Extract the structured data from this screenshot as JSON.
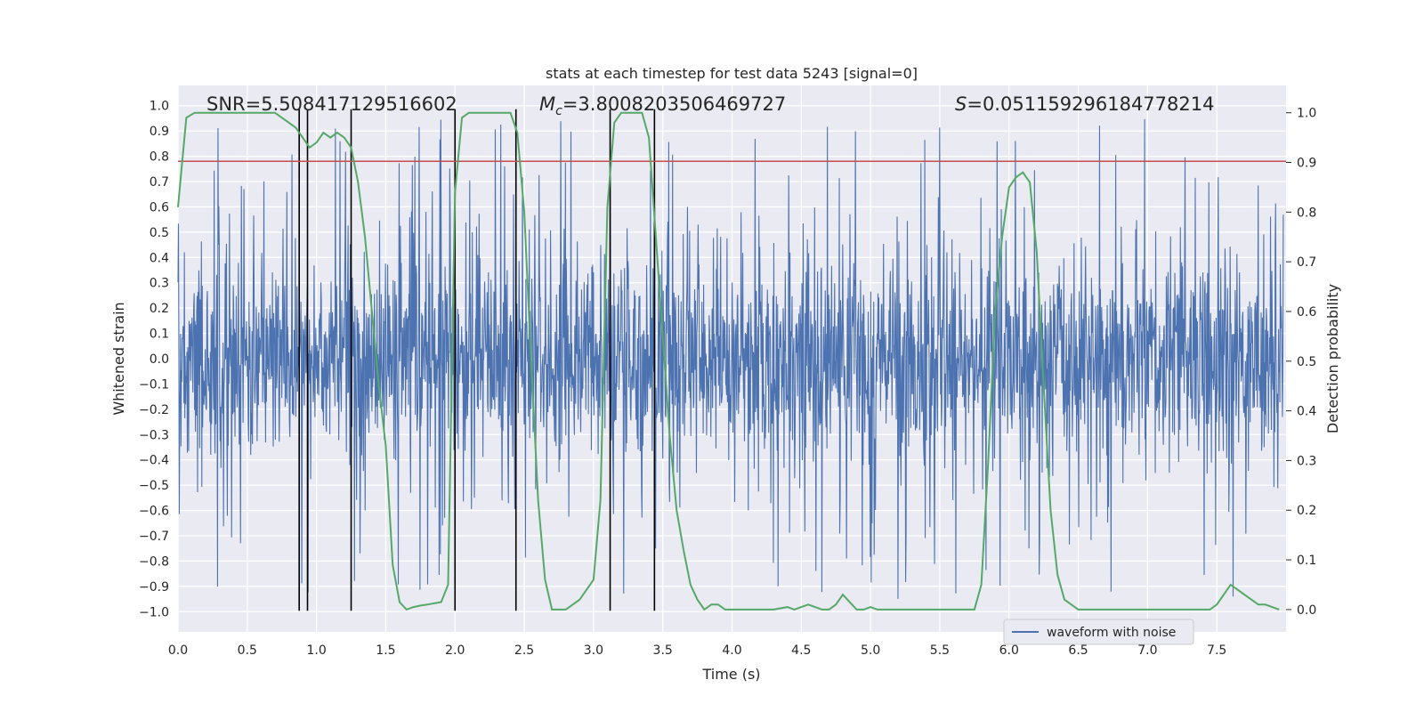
{
  "chart_data": {
    "type": "line",
    "title": "stats at each timestep for test data 5243 [signal=0]",
    "xlabel": "Time (s)",
    "ylabel_left": "Whitened strain",
    "ylabel_right": "Detection probability",
    "xlim": [
      0.0,
      8.0
    ],
    "ylim_left": [
      -1.08,
      1.08
    ],
    "ylim_right": [
      -0.045,
      1.055
    ],
    "x_ticks": [
      "0.0",
      "0.5",
      "1.0",
      "1.5",
      "2.0",
      "2.5",
      "3.0",
      "3.5",
      "4.0",
      "4.5",
      "5.0",
      "5.5",
      "6.0",
      "6.5",
      "7.0",
      "7.5"
    ],
    "y_ticks_left": [
      "1.0",
      "0.9",
      "0.8",
      "0.7",
      "0.6",
      "0.5",
      "0.4",
      "0.3",
      "0.2",
      "0.1",
      "0.0",
      "-0.1",
      "-0.2",
      "-0.3",
      "-0.4",
      "-0.5",
      "-0.6",
      "-0.7",
      "-0.8",
      "-0.9",
      "-1.0"
    ],
    "y_ticks_right": [
      "1.0",
      "0.9",
      "0.8",
      "0.7",
      "0.6",
      "0.5",
      "0.4",
      "0.3",
      "0.2",
      "0.1",
      "0.0"
    ],
    "grid": true,
    "annotations": {
      "snr": "SNR=5.508417129516602",
      "mc_symbol": "M",
      "mc_sub": "c",
      "mc_value": "=3.8008203506469727",
      "s_symbol": "S",
      "s_value": "=0.051159296184778214"
    },
    "threshold_left_y": 0.78,
    "vertical_lines_x": [
      0.875,
      0.935,
      1.25,
      2.0,
      2.44,
      3.12,
      3.44
    ],
    "series": [
      {
        "name": "waveform with noise",
        "color": "#4c72b0",
        "axis": "left",
        "description_bounds": [
          -1.0,
          1.0
        ]
      },
      {
        "name": "",
        "color": "#55a868",
        "axis": "right",
        "x": [
          0.0,
          0.06,
          0.12,
          0.2,
          0.3,
          0.4,
          0.5,
          0.6,
          0.7,
          0.8,
          0.85,
          0.9,
          0.95,
          1.0,
          1.05,
          1.1,
          1.15,
          1.2,
          1.25,
          1.3,
          1.35,
          1.4,
          1.45,
          1.5,
          1.55,
          1.6,
          1.65,
          1.7,
          1.75,
          1.8,
          1.9,
          1.95,
          2.0,
          2.05,
          2.1,
          2.2,
          2.3,
          2.35,
          2.4,
          2.45,
          2.5,
          2.55,
          2.6,
          2.65,
          2.7,
          2.75,
          2.8,
          2.85,
          2.9,
          2.95,
          3.0,
          3.05,
          3.1,
          3.15,
          3.2,
          3.25,
          3.3,
          3.35,
          3.4,
          3.45,
          3.5,
          3.55,
          3.6,
          3.65,
          3.7,
          3.75,
          3.8,
          3.85,
          3.9,
          3.95,
          4.0,
          4.05,
          4.1,
          4.2,
          4.3,
          4.4,
          4.45,
          4.5,
          4.55,
          4.6,
          4.65,
          4.7,
          4.75,
          4.8,
          4.85,
          4.9,
          4.95,
          5.0,
          5.05,
          5.1,
          5.2,
          5.3,
          5.4,
          5.5,
          5.6,
          5.7,
          5.75,
          5.8,
          5.85,
          5.9,
          5.95,
          6.0,
          6.05,
          6.1,
          6.15,
          6.2,
          6.25,
          6.3,
          6.35,
          6.4,
          6.45,
          6.5,
          6.6,
          6.7,
          6.8,
          6.9,
          7.0,
          7.1,
          7.2,
          7.3,
          7.4,
          7.45,
          7.5,
          7.55,
          7.6,
          7.65,
          7.7,
          7.75,
          7.8,
          7.85,
          7.9,
          7.95
        ],
        "values": [
          0.81,
          0.99,
          1.0,
          1.0,
          1.0,
          1.0,
          1.0,
          1.0,
          1.0,
          0.98,
          0.97,
          0.95,
          0.93,
          0.94,
          0.96,
          0.95,
          0.96,
          0.95,
          0.93,
          0.86,
          0.75,
          0.6,
          0.45,
          0.33,
          0.09,
          0.015,
          0.0,
          0.005,
          0.008,
          0.01,
          0.015,
          0.05,
          0.84,
          0.99,
          1.0,
          1.0,
          1.0,
          1.0,
          1.0,
          0.96,
          0.8,
          0.5,
          0.22,
          0.06,
          0.0,
          0.0,
          0.0,
          0.01,
          0.02,
          0.04,
          0.06,
          0.22,
          0.81,
          0.98,
          1.0,
          1.0,
          1.0,
          1.0,
          0.95,
          0.75,
          0.55,
          0.35,
          0.2,
          0.12,
          0.05,
          0.02,
          0.0,
          0.01,
          0.01,
          0.0,
          0.0,
          0.0,
          0.0,
          0.0,
          0.0,
          0.005,
          0.0,
          0.005,
          0.01,
          0.005,
          0.0,
          0.0,
          0.01,
          0.03,
          0.015,
          0.0,
          0.0,
          0.005,
          0.0,
          0.0,
          0.0,
          0.0,
          0.0,
          0.0,
          0.0,
          0.0,
          0.0,
          0.05,
          0.3,
          0.6,
          0.75,
          0.85,
          0.87,
          0.88,
          0.86,
          0.72,
          0.45,
          0.2,
          0.07,
          0.02,
          0.01,
          0.0,
          0.0,
          0.0,
          0.0,
          0.0,
          0.0,
          0.0,
          0.0,
          0.0,
          0.0,
          0.0,
          0.01,
          0.03,
          0.05,
          0.04,
          0.03,
          0.02,
          0.01,
          0.01,
          0.005,
          0.0
        ]
      }
    ],
    "legend": {
      "label": "waveform with noise",
      "placement": "lower-right"
    }
  },
  "colors": {
    "plot_bg": "#eaeaf2",
    "grid": "#ffffff",
    "waveform": "#4c72b0",
    "probability": "#55a868",
    "threshold": "#c44e52",
    "vlines": "#000000"
  }
}
